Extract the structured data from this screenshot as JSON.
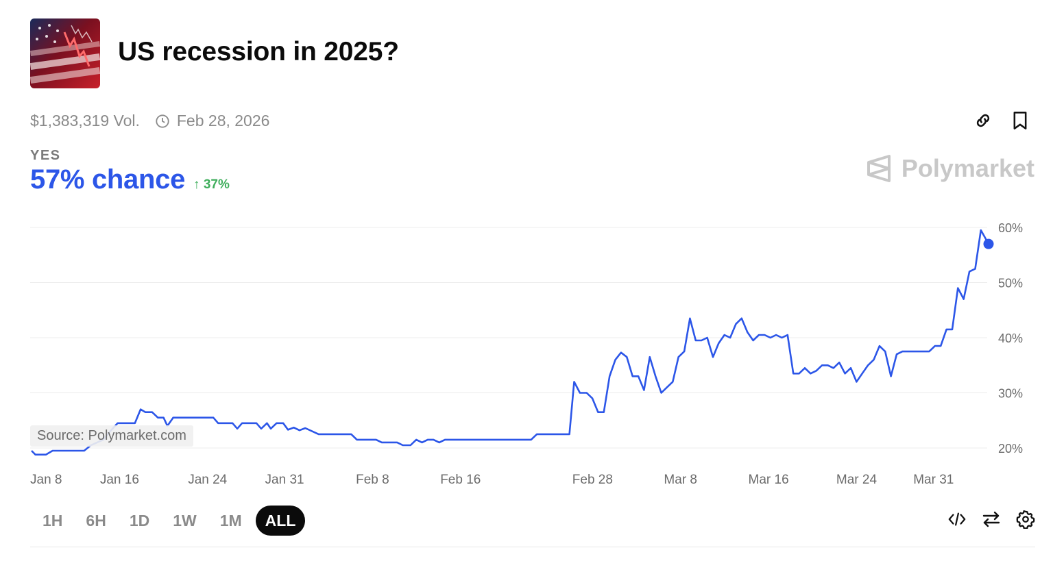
{
  "market": {
    "title": "US recession in 2025?",
    "volume": "$1,383,319 Vol.",
    "end_date": "Feb 28, 2026",
    "outcome": "YES",
    "chance": "57% chance",
    "change": "37%",
    "brand": "Polymarket",
    "source": "Source: Polymarket.com"
  },
  "icons": {
    "thumbnail": "us-flag-chart-image",
    "clock": "clock-icon",
    "link": "link-icon",
    "bookmark": "bookmark-icon",
    "embed": "code-icon",
    "swap": "swap-arrows-icon",
    "settings": "gear-icon"
  },
  "colors": {
    "accent": "#2c56e8",
    "positive": "#3fae5c"
  },
  "ranges": [
    {
      "label": "1H"
    },
    {
      "label": "6H"
    },
    {
      "label": "1D"
    },
    {
      "label": "1W"
    },
    {
      "label": "1M"
    },
    {
      "label": "ALL",
      "active": true
    }
  ],
  "chart_data": {
    "type": "line",
    "x_labels": [
      "Jan 8",
      "Jan 16",
      "Jan 24",
      "Jan 31",
      "Feb 8",
      "Feb 16",
      "Feb 28",
      "Mar 8",
      "Mar 16",
      "Mar 24",
      "Mar 31"
    ],
    "x_label_days": [
      0,
      8,
      16,
      23,
      31,
      39,
      51,
      59,
      67,
      75,
      82
    ],
    "y_ticks": [
      "20%",
      "30%",
      "40%",
      "50%",
      "60%"
    ],
    "ylim": [
      20,
      60
    ],
    "xlim_days": [
      0,
      87
    ],
    "grid": true,
    "series": [
      {
        "color": "#2c56e8",
        "points": [
          [
            0,
            19.5
          ],
          [
            0.4,
            18.8
          ],
          [
            1.5,
            18.8
          ],
          [
            2.2,
            19.5
          ],
          [
            5.5,
            19.5
          ],
          [
            6.2,
            20.5
          ],
          [
            7.5,
            21.5
          ],
          [
            8.2,
            23
          ],
          [
            9,
            24.5
          ],
          [
            10.8,
            24.5
          ],
          [
            11.4,
            27
          ],
          [
            11.9,
            26.5
          ],
          [
            12.6,
            26.5
          ],
          [
            13.2,
            25.5
          ],
          [
            13.8,
            25.5
          ],
          [
            14.2,
            24
          ],
          [
            14.8,
            25.5
          ],
          [
            19,
            25.5
          ],
          [
            19.5,
            24.5
          ],
          [
            21,
            24.5
          ],
          [
            21.5,
            23.5
          ],
          [
            22,
            24.5
          ],
          [
            23.5,
            24.5
          ],
          [
            24,
            23.5
          ],
          [
            24.6,
            24.5
          ],
          [
            25,
            23.5
          ],
          [
            25.6,
            24.5
          ],
          [
            26.3,
            24.5
          ],
          [
            26.8,
            23.3
          ],
          [
            27.4,
            23.7
          ],
          [
            28,
            23.2
          ],
          [
            28.6,
            23.6
          ],
          [
            30,
            22.5
          ],
          [
            33.4,
            22.5
          ],
          [
            34,
            21.5
          ],
          [
            36,
            21.5
          ],
          [
            36.6,
            21
          ],
          [
            38.2,
            21
          ],
          [
            38.8,
            20.5
          ],
          [
            39.6,
            20.5
          ],
          [
            40.2,
            21.5
          ],
          [
            40.8,
            21
          ],
          [
            41.4,
            21.5
          ],
          [
            42,
            21.5
          ],
          [
            42.6,
            21
          ],
          [
            43.2,
            21.5
          ],
          [
            52.2,
            21.5
          ],
          [
            52.8,
            22.5
          ],
          [
            56.2,
            22.5
          ],
          [
            56.7,
            32
          ],
          [
            57.3,
            30
          ],
          [
            58,
            30
          ],
          [
            58.6,
            29
          ],
          [
            59.2,
            26.5
          ],
          [
            59.8,
            26.5
          ],
          [
            60.4,
            33
          ],
          [
            61,
            36
          ],
          [
            61.6,
            37.3
          ],
          [
            62.2,
            36.5
          ],
          [
            62.8,
            33
          ],
          [
            63.4,
            33
          ],
          [
            64,
            30.5
          ],
          [
            64.6,
            36.5
          ],
          [
            65.2,
            33
          ],
          [
            65.8,
            30
          ],
          [
            66.4,
            31
          ],
          [
            67,
            32
          ],
          [
            67.6,
            36.5
          ],
          [
            68.2,
            37.5
          ],
          [
            68.8,
            43.5
          ],
          [
            69.4,
            39.5
          ],
          [
            70,
            39.5
          ],
          [
            70.6,
            40
          ],
          [
            71.2,
            36.5
          ],
          [
            71.8,
            39
          ],
          [
            72.4,
            40.5
          ],
          [
            73,
            40
          ],
          [
            73.6,
            42.5
          ],
          [
            74.2,
            43.5
          ],
          [
            74.8,
            41
          ],
          [
            75.4,
            39.5
          ],
          [
            76,
            40.5
          ],
          [
            76.6,
            40.5
          ],
          [
            77.2,
            40
          ],
          [
            77.8,
            40.5
          ],
          [
            78.4,
            40
          ],
          [
            79,
            40.5
          ],
          [
            79.6,
            33.5
          ],
          [
            80.2,
            33.5
          ],
          [
            80.8,
            34.5
          ],
          [
            81.4,
            33.5
          ],
          [
            82,
            34
          ],
          [
            82.6,
            35
          ],
          [
            83.2,
            35
          ],
          [
            83.8,
            34.5
          ],
          [
            84.4,
            35.5
          ],
          [
            85,
            33.5
          ],
          [
            85.6,
            34.5
          ],
          [
            86.2,
            32
          ],
          [
            86.8,
            33.5
          ],
          [
            87.4,
            35
          ],
          [
            88,
            36
          ],
          [
            88.6,
            38.5
          ],
          [
            89.2,
            37.5
          ],
          [
            89.8,
            33
          ],
          [
            90.4,
            37
          ],
          [
            91,
            37.5
          ],
          [
            93.8,
            37.5
          ],
          [
            94.4,
            38.5
          ],
          [
            95,
            38.5
          ],
          [
            95.6,
            41.5
          ],
          [
            96.2,
            41.5
          ],
          [
            96.8,
            49
          ],
          [
            97.4,
            47
          ],
          [
            98,
            52
          ],
          [
            98.6,
            52.5
          ],
          [
            99.2,
            59.5
          ],
          [
            100,
            57
          ]
        ]
      }
    ]
  }
}
